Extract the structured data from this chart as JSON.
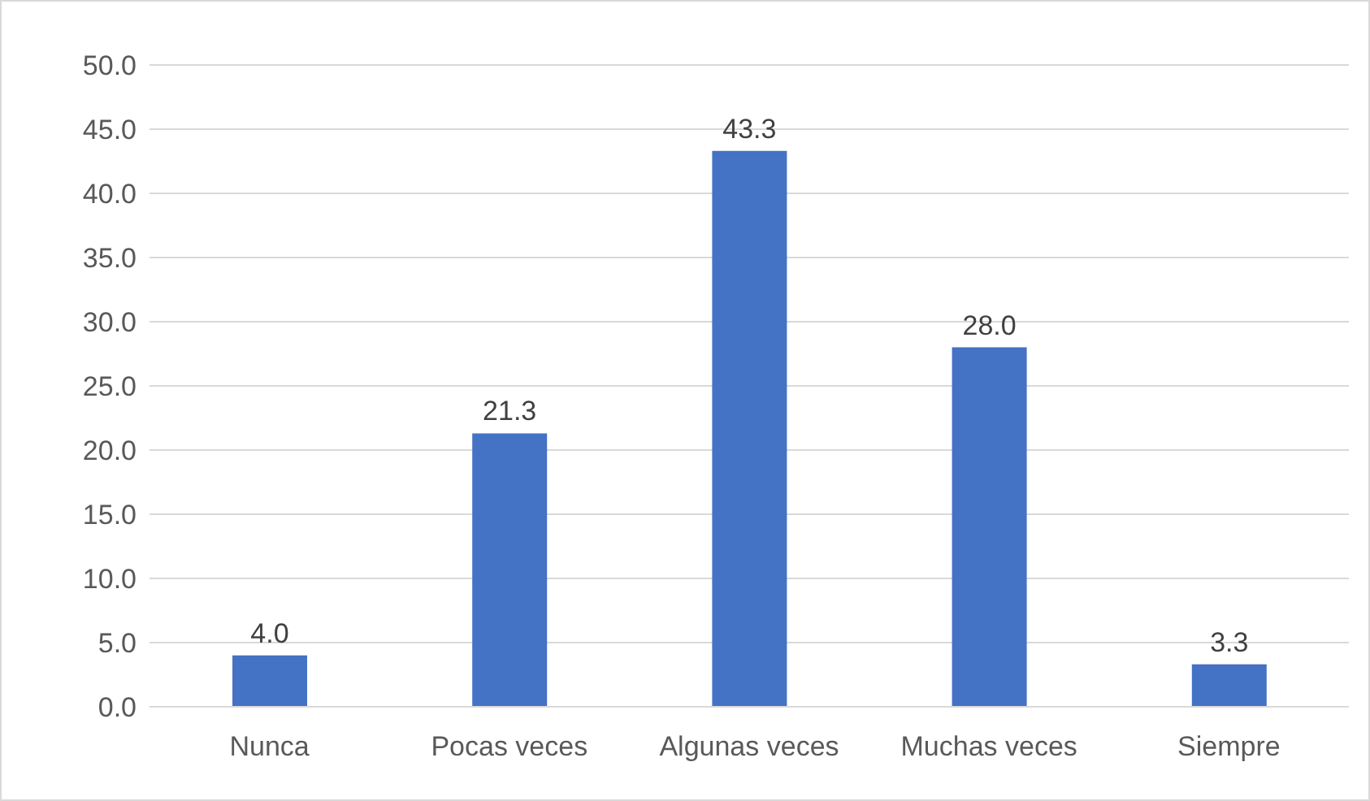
{
  "chart_data": {
    "type": "bar",
    "categories": [
      "Nunca",
      "Pocas veces",
      "Algunas veces",
      "Muchas veces",
      "Siempre"
    ],
    "values": [
      4.0,
      21.3,
      43.3,
      28.0,
      3.3
    ],
    "value_labels": [
      "4.0",
      "21.3",
      "43.3",
      "28.0",
      "3.3"
    ],
    "color": "#4472c4",
    "ylim": [
      0,
      50
    ],
    "yticks": [
      {
        "value": 0,
        "label": "0.0"
      },
      {
        "value": 5,
        "label": "5.0"
      },
      {
        "value": 10,
        "label": "10.0"
      },
      {
        "value": 15,
        "label": "15.0"
      },
      {
        "value": 20,
        "label": "20.0"
      },
      {
        "value": 25,
        "label": "25.0"
      },
      {
        "value": 30,
        "label": "30.0"
      },
      {
        "value": 35,
        "label": "35.0"
      },
      {
        "value": 40,
        "label": "40.0"
      },
      {
        "value": 45,
        "label": "45.0"
      },
      {
        "value": 50,
        "label": "50.0"
      }
    ],
    "grid": "y"
  }
}
